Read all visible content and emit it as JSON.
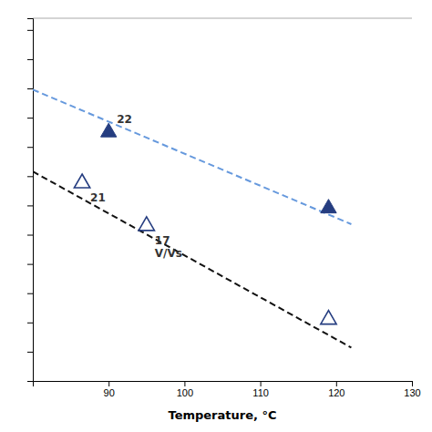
{
  "chart_data": {
    "type": "scatter",
    "xlabel": "Temperature, °C",
    "xlim": [
      80,
      130
    ],
    "xticks": [
      90,
      100,
      110,
      120,
      130
    ],
    "ylim": [
      0.28,
      0.9
    ],
    "yticks": [
      0.28,
      0.33,
      0.38,
      0.43,
      0.48,
      0.53,
      0.58,
      0.63,
      0.68,
      0.73,
      0.78,
      0.83,
      0.88
    ],
    "tick_labels": "x",
    "grid": false,
    "series": [
      {
        "type": "line",
        "color": "#6699dd",
        "line_style": "dashed",
        "x": [
          80,
          122
        ],
        "values": [
          0.778,
          0.548
        ]
      },
      {
        "type": "line",
        "color": "#111111",
        "line_style": "dashed",
        "x": [
          80,
          122
        ],
        "values": [
          0.638,
          0.337
        ]
      },
      {
        "type": "scatter",
        "color": "#253d80",
        "marker": "triangle",
        "x": [
          90,
          119
        ],
        "values": [
          0.705,
          0.575
        ],
        "labels": [
          "22",
          null
        ]
      },
      {
        "type": "scatter",
        "color": "#253d80",
        "marker": "triangle-open",
        "x": [
          86.5,
          95,
          119
        ],
        "values": [
          0.618,
          0.545,
          0.385
        ],
        "labels": [
          "21",
          "17\nV/Vs",
          null
        ]
      }
    ]
  }
}
